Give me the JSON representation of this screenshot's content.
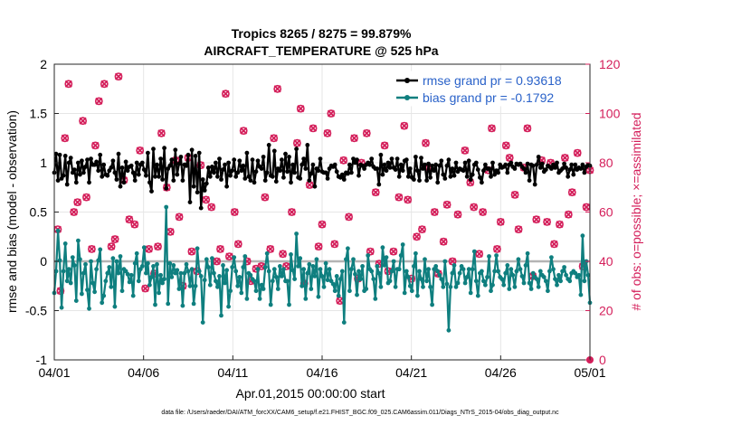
{
  "chart_data": {
    "type": "line",
    "title": "Tropics 8265 / 8275 = 99.879%",
    "subtitle": "AIRCRAFT_TEMPERATURE @ 525 hPa",
    "xlabel": "Apr.01,2015 00:00:00 start",
    "ylabel": "rmse and bias (model - observation)",
    "ylabel_right": "# of obs: o=possible; ×=assimilated",
    "footnote": "data file: /Users/raeder/DAI/ATM_forcXX/CAM6_setup/f.e21.FHIST_BGC.f09_025.CAM6assim.011/Diags_NTrS_2015-04/obs_diag_output.nc",
    "x_range_days": [
      0,
      30
    ],
    "ylim": [
      -1,
      2
    ],
    "ylim_right": [
      0,
      120
    ],
    "x_ticks": [
      0,
      5,
      10,
      15,
      20,
      25,
      30
    ],
    "x_tick_labels": [
      "04/01",
      "04/06",
      "04/11",
      "04/16",
      "04/21",
      "04/26",
      "05/01"
    ],
    "y_ticks": [
      -1,
      -0.5,
      0,
      0.5,
      1,
      1.5,
      2
    ],
    "y_tick_labels": [
      "-1",
      "-0.5",
      "0",
      "0.5",
      "1",
      "1.5",
      "2"
    ],
    "y_right_ticks": [
      0,
      20,
      40,
      60,
      80,
      100,
      120
    ],
    "y_right_tick_labels": [
      "0",
      "20",
      "40",
      "60",
      "80",
      "100",
      "120"
    ],
    "grid": true,
    "legend_position": "top-right",
    "zero_line_color": "#b4b4b4",
    "colors": {
      "rmse": "#000000",
      "bias": "#0f7f7f",
      "obs": "#d41e5a",
      "legend_text": "#2a62c9"
    },
    "series": [
      {
        "name": "rmse grand pr = 0.93618",
        "values": [
          0.9,
          1.09,
          0.82,
          1.08,
          0.84,
          0.87,
          1.07,
          0.78,
          1.0,
          1.05,
          0.9,
          0.93,
          0.8,
          1.0,
          0.88,
          1.02,
          0.9,
          0.96,
          1.03,
          0.8,
          1.04,
          0.98,
          0.98,
          1.01,
          0.92,
          1.08,
          0.86,
          0.98,
          0.88,
          0.87,
          0.92,
          0.95,
          1.02,
          0.9,
          0.83,
          1.09,
          0.76,
          0.95,
          0.8,
          1.01,
          0.92,
          0.96,
          0.97,
          0.9,
          0.82,
          1.0,
          0.88,
          0.98,
          1.0,
          0.93,
          0.87,
          1.1,
          0.8,
          0.71,
          1.14,
          0.86,
          0.98,
          0.86,
          1.04,
          0.83,
          1.15,
          0.74,
          0.94,
          0.97,
          1.03,
          0.82,
          1.13,
          0.88,
          0.99,
          1.06,
          0.82,
          0.98,
          0.97,
          1.08,
          0.6,
          1.13,
          0.76,
          1.07,
          0.7,
          1.1,
          0.54,
          0.83,
          0.72,
          0.79,
          0.95,
          0.86,
          0.96,
          0.9,
          1.0,
          0.86,
          1.04,
          0.83,
          0.93,
          0.98,
          0.76,
          1.0,
          0.87,
          0.92,
          1.03,
          0.86,
          0.9,
          1.02,
          0.92,
          0.97,
          0.84,
          1.1,
          0.86,
          0.82,
          1.03,
          0.8,
          0.91,
          1.02,
          0.96,
          0.94,
          1.06,
          0.82,
          0.9,
          1.18,
          0.87,
          0.86,
          1.12,
          0.81,
          0.94,
          0.92,
          1.03,
          0.85,
          1.09,
          0.91,
          1.06,
          0.8,
          0.98,
          0.9,
          1.14,
          0.85,
          0.84,
          0.98,
          1.04,
          0.94,
          1.18,
          0.82,
          0.89,
          0.98,
          0.76,
          0.94,
          0.92,
          1.04,
          0.91,
          0.9,
          0.9,
          0.84,
          0.94,
          0.97,
          0.96,
          0.98,
          0.91,
          0.86,
          0.85,
          0.88,
          0.83,
          0.9,
          0.89,
          0.98,
          0.9,
          1.04,
          1.0,
          1.03,
          0.87,
          0.98,
          0.97,
          0.94,
          0.98,
          1.0,
          0.98,
          1.04,
          0.96,
          0.94,
          0.94,
          0.78,
          1.08,
          0.88,
          0.98,
          0.92,
          1.0,
          0.95,
          1.04,
          0.95,
          0.93,
          1.04,
          0.86,
          0.98,
          0.92,
          1.02,
          1.03,
          0.86,
          0.94,
          0.85,
          0.83,
          1.06,
          0.92,
          0.82,
          1.05,
          0.94,
          0.98,
          0.82,
          0.99,
          0.85,
          0.97,
          0.92,
          0.98,
          0.8,
          0.97,
          1.02,
          0.88,
          0.84,
          0.97,
          1.03,
          0.86,
          0.94,
          0.87,
          1.0,
          0.91,
          0.94,
          0.93,
          0.92,
          1.0,
          0.86,
          1.02,
          0.83,
          0.88,
          0.98,
          1.0,
          0.93,
          0.85,
          0.8,
          0.92,
          0.98,
          0.94,
          0.94,
          0.86,
          1.0,
          0.88,
          0.92,
          0.9,
          0.98,
          0.95,
          0.96,
          0.98,
          0.9,
          0.98,
          1.0,
          0.96,
          0.94,
          0.99,
          0.98,
          0.99,
          0.96,
          0.94,
          0.9,
          0.99,
          0.82,
          0.98,
          0.97,
          0.78,
          0.98,
          1.06,
          0.95,
          0.99,
          0.91,
          0.93,
          0.97,
          0.96,
          0.94,
          0.98,
          0.95,
          1.0,
          0.9,
          0.92,
          0.94,
          0.99,
          0.95,
          0.86,
          0.93,
          0.98,
          0.88,
          0.98,
          0.93,
          0.95,
          0.94,
          0.98,
          0.9,
          0.96,
          0.98,
          0.97
        ]
      },
      {
        "name": "bias grand pr = -0.1792",
        "values": [
          -0.32,
          -0.1,
          0.31,
          0.01,
          -0.47,
          -0.1,
          0.18,
          -0.2,
          -0.08,
          -0.22,
          0.04,
          -0.04,
          -0.4,
          0.21,
          0.02,
          -0.33,
          -0.12,
          -0.03,
          -0.29,
          -0.48,
          0.0,
          -0.22,
          -0.31,
          -0.08,
          0.01,
          0.12,
          -0.42,
          -0.35,
          -0.2,
          -0.12,
          -0.06,
          -0.26,
          0.03,
          -0.46,
          0.0,
          -0.12,
          0.05,
          -0.3,
          -0.08,
          -0.1,
          -0.13,
          -0.21,
          -0.14,
          -0.35,
          -0.02,
          0.08,
          -0.2,
          -0.08,
          -0.05,
          0.14,
          -0.12,
          -0.02,
          -0.24,
          -0.16,
          -0.05,
          -0.44,
          -0.03,
          -0.32,
          -0.14,
          -0.22,
          -0.18,
          0.55,
          -0.43,
          -0.02,
          -0.16,
          -0.04,
          -0.12,
          -0.09,
          -0.28,
          -0.12,
          -0.45,
          -0.12,
          -0.03,
          -0.1,
          -0.25,
          -0.08,
          -0.43,
          -0.25,
          0.13,
          -0.1,
          -0.15,
          -0.62,
          -0.19,
          0.02,
          -0.06,
          -0.24,
          0.03,
          -0.12,
          -0.2,
          -0.26,
          -0.15,
          -0.55,
          -0.04,
          -0.22,
          -0.09,
          -0.46,
          -0.3,
          -0.06,
          0.04,
          -0.1,
          -0.25,
          -0.16,
          -0.32,
          -0.06,
          0.05,
          -0.38,
          -0.12,
          -0.14,
          -0.18,
          -0.2,
          -0.3,
          -0.08,
          -0.38,
          -0.24,
          -0.28,
          -0.06,
          0.08,
          -0.1,
          -0.44,
          -0.2,
          -0.08,
          -0.16,
          -0.28,
          -0.05,
          -0.15,
          -0.08,
          -0.2,
          -0.2,
          -0.44,
          0.07,
          -0.09,
          -0.18,
          0.28,
          -0.05,
          0.03,
          -0.25,
          -0.08,
          -0.38,
          -0.12,
          -0.03,
          -0.28,
          -0.05,
          -0.15,
          0.02,
          -0.36,
          -0.08,
          -0.15,
          -0.26,
          -0.02,
          -0.19,
          -0.08,
          -0.2,
          -0.23,
          -0.3,
          -0.15,
          -0.35,
          -0.18,
          -0.1,
          -0.62,
          0.02,
          0.13,
          -0.3,
          -0.08,
          0.02,
          -0.13,
          -0.34,
          -0.1,
          -0.18,
          -0.05,
          -0.3,
          -0.28,
          0.06,
          -0.08,
          -0.1,
          -0.18,
          -0.38,
          -0.05,
          -0.12,
          -0.26,
          0.14,
          -0.04,
          0.04,
          -0.22,
          -0.2,
          -0.1,
          0.0,
          -0.26,
          -0.08,
          -0.08,
          0.06,
          0.17,
          -0.32,
          -0.1,
          -0.16,
          -0.25,
          -0.3,
          -0.05,
          0.08,
          -0.35,
          -0.1,
          -0.18,
          -0.26,
          0.02,
          -0.2,
          -0.08,
          -0.26,
          -0.44,
          -0.08,
          -0.05,
          -0.1,
          -0.14,
          -0.18,
          -0.26,
          0.0,
          -0.23,
          -0.7,
          -0.26,
          -0.12,
          -0.04,
          -0.26,
          -0.22,
          -0.12,
          -0.05,
          -0.08,
          -0.22,
          -0.16,
          -0.08,
          -0.32,
          -0.08,
          0.1,
          -0.2,
          -0.35,
          -0.12,
          -0.1,
          -0.2,
          -0.24,
          -0.16,
          0.05,
          -0.3,
          -0.24,
          -0.1,
          0.06,
          -0.1,
          -0.16,
          -0.18,
          -0.24,
          -0.12,
          -0.04,
          -0.28,
          -0.08,
          -0.14,
          -0.26,
          -0.1,
          0.02,
          -0.08,
          -0.15,
          -0.22,
          -0.04,
          0.08,
          -0.22,
          -0.28,
          -0.12,
          -0.16,
          -0.18,
          -0.26,
          -0.1,
          -0.14,
          -0.16,
          -0.2,
          -0.3,
          -0.1,
          0.04,
          -0.08,
          -0.18,
          -0.24,
          -0.14,
          -0.2,
          -0.1,
          -0.06,
          -0.14,
          -0.18,
          -0.2,
          -0.12,
          -0.1,
          -0.12,
          -0.16,
          -0.14,
          -0.34,
          0.26,
          -0.2,
          0.0,
          -0.14,
          -0.42
        ]
      }
    ],
    "obs_counts": {
      "name": "# of obs",
      "points": [
        [
          0.2,
          53
        ],
        [
          0.35,
          28
        ],
        [
          0.6,
          90
        ],
        [
          0.8,
          112
        ],
        [
          1.1,
          60
        ],
        [
          1.3,
          64
        ],
        [
          1.6,
          97
        ],
        [
          1.8,
          66
        ],
        [
          2.1,
          45
        ],
        [
          2.3,
          87
        ],
        [
          2.5,
          105
        ],
        [
          2.8,
          112
        ],
        [
          3.2,
          46
        ],
        [
          3.4,
          49
        ],
        [
          3.6,
          115
        ],
        [
          3.9,
          73
        ],
        [
          4.2,
          57
        ],
        [
          4.5,
          55
        ],
        [
          4.8,
          85
        ],
        [
          5.1,
          29
        ],
        [
          5.3,
          45
        ],
        [
          5.6,
          35
        ],
        [
          5.8,
          46
        ],
        [
          6.0,
          92
        ],
        [
          6.3,
          70
        ],
        [
          6.5,
          52
        ],
        [
          6.8,
          81
        ],
        [
          7.0,
          58
        ],
        [
          7.2,
          30
        ],
        [
          7.5,
          82
        ],
        [
          7.7,
          44
        ],
        [
          8.0,
          36
        ],
        [
          8.2,
          79
        ],
        [
          8.5,
          65
        ],
        [
          8.8,
          62
        ],
        [
          9.1,
          40
        ],
        [
          9.3,
          45
        ],
        [
          9.6,
          108
        ],
        [
          9.8,
          42
        ],
        [
          10.1,
          60
        ],
        [
          10.3,
          47
        ],
        [
          10.6,
          93
        ],
        [
          10.8,
          40
        ],
        [
          11.0,
          32
        ],
        [
          11.3,
          37
        ],
        [
          11.6,
          38
        ],
        [
          11.8,
          66
        ],
        [
          12.1,
          45
        ],
        [
          12.3,
          90
        ],
        [
          12.5,
          110
        ],
        [
          12.8,
          43
        ],
        [
          13.0,
          38
        ],
        [
          13.3,
          60
        ],
        [
          13.6,
          88
        ],
        [
          13.8,
          102
        ],
        [
          14.0,
          31
        ],
        [
          14.3,
          71
        ],
        [
          14.5,
          94
        ],
        [
          14.8,
          46
        ],
        [
          15.0,
          55
        ],
        [
          15.3,
          92
        ],
        [
          15.5,
          100
        ],
        [
          15.7,
          47
        ],
        [
          16.0,
          24
        ],
        [
          16.2,
          81
        ],
        [
          16.5,
          58
        ],
        [
          16.8,
          90
        ],
        [
          17.0,
          33
        ],
        [
          17.2,
          80
        ],
        [
          17.5,
          92
        ],
        [
          17.7,
          44
        ],
        [
          18.0,
          68
        ],
        [
          18.2,
          39
        ],
        [
          18.5,
          87
        ],
        [
          18.7,
          36
        ],
        [
          19.0,
          44
        ],
        [
          19.3,
          66
        ],
        [
          19.6,
          95
        ],
        [
          19.8,
          65
        ],
        [
          20.0,
          33
        ],
        [
          20.3,
          50
        ],
        [
          20.6,
          53
        ],
        [
          20.8,
          88
        ],
        [
          21.0,
          78
        ],
        [
          21.3,
          60
        ],
        [
          21.5,
          35
        ],
        [
          21.8,
          48
        ],
        [
          22.0,
          63
        ],
        [
          22.3,
          40
        ],
        [
          22.6,
          59
        ],
        [
          22.8,
          115
        ],
        [
          23.0,
          85
        ],
        [
          23.3,
          72
        ],
        [
          23.5,
          62
        ],
        [
          23.8,
          43
        ],
        [
          24.0,
          60
        ],
        [
          24.3,
          77
        ],
        [
          24.5,
          94
        ],
        [
          24.8,
          45
        ],
        [
          25.0,
          56
        ],
        [
          25.3,
          87
        ],
        [
          25.5,
          82
        ],
        [
          25.8,
          67
        ],
        [
          26.0,
          53
        ],
        [
          26.3,
          78
        ],
        [
          26.5,
          94
        ],
        [
          26.8,
          34
        ],
        [
          27.0,
          57
        ],
        [
          27.3,
          81
        ],
        [
          27.6,
          56
        ],
        [
          27.8,
          80
        ],
        [
          28.0,
          47
        ],
        [
          28.3,
          55
        ],
        [
          28.6,
          82
        ],
        [
          28.8,
          59
        ],
        [
          29.0,
          68
        ],
        [
          29.3,
          84
        ],
        [
          29.6,
          38
        ],
        [
          29.8,
          62
        ],
        [
          30.0,
          77
        ]
      ]
    },
    "legend": [
      "rmse grand pr = 0.93618",
      "bias grand pr = -0.1792"
    ]
  }
}
